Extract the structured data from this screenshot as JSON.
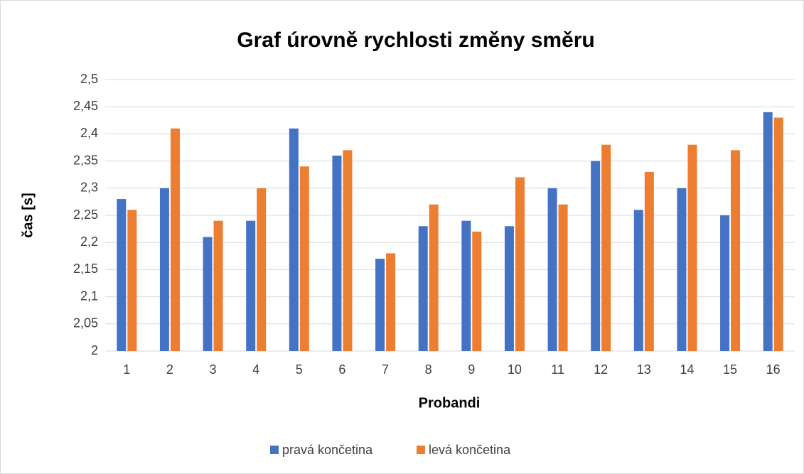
{
  "chart_data": {
    "type": "bar",
    "title": "Graf úrovně rychlosti změny směru",
    "x_label": "Probandi",
    "y_label": "čas [s]",
    "categories": [
      "1",
      "2",
      "3",
      "4",
      "5",
      "6",
      "7",
      "8",
      "9",
      "10",
      "11",
      "12",
      "13",
      "14",
      "15",
      "16"
    ],
    "series": [
      {
        "name": "pravá končetina",
        "color": "#4472c4",
        "values": [
          2.28,
          2.3,
          2.21,
          2.24,
          2.41,
          2.36,
          2.17,
          2.23,
          2.24,
          2.23,
          2.3,
          2.35,
          2.26,
          2.3,
          2.25,
          2.44
        ]
      },
      {
        "name": "levá končetina",
        "color": "#ed7d31",
        "values": [
          2.26,
          2.41,
          2.24,
          2.3,
          2.34,
          2.37,
          2.18,
          2.27,
          2.22,
          2.32,
          2.27,
          2.38,
          2.33,
          2.38,
          2.37,
          2.43
        ]
      }
    ],
    "ylim": [
      2,
      2.5
    ],
    "yticks": [
      2,
      {
        "value": 2.05,
        "label": "2,05"
      },
      {
        "value": 2.1,
        "label": "2,1"
      },
      {
        "value": 2.15,
        "label": "2,15"
      },
      {
        "value": 2.2,
        "label": "2,2"
      },
      {
        "value": 2.25,
        "label": "2,25"
      },
      {
        "value": 2.3,
        "label": "2,3"
      },
      {
        "value": 2.35,
        "label": "2,35"
      },
      {
        "value": 2.4,
        "label": "2,4"
      },
      {
        "value": 2.45,
        "label": "2,45"
      },
      {
        "value": 2.5,
        "label": "2,5"
      }
    ],
    "grid": true,
    "legend": "bottom"
  }
}
